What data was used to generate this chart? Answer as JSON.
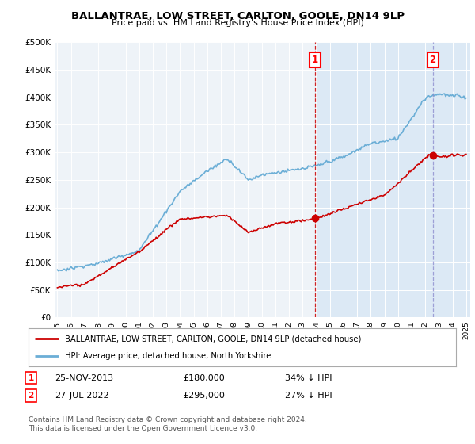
{
  "title": "BALLANTRAE, LOW STREET, CARLTON, GOOLE, DN14 9LP",
  "subtitle": "Price paid vs. HM Land Registry's House Price Index (HPI)",
  "ylim": [
    0,
    500000
  ],
  "yticks": [
    0,
    50000,
    100000,
    150000,
    200000,
    250000,
    300000,
    350000,
    400000,
    450000,
    500000
  ],
  "ytick_labels": [
    "£0",
    "£50K",
    "£100K",
    "£150K",
    "£200K",
    "£250K",
    "£300K",
    "£350K",
    "£400K",
    "£450K",
    "£500K"
  ],
  "hpi_color": "#6baed6",
  "hpi_fill_color": "#d0e4f2",
  "price_color": "#cc0000",
  "dashed_line1_color": "#cc0000",
  "dashed_line2_color": "#8888cc",
  "bg_color": "#ffffff",
  "plot_bg_color": "#eef3f8",
  "shaded_bg_color": "#dce9f5",
  "transaction1": {
    "date": "25-NOV-2013",
    "price": "£180,000",
    "hpi_diff": "34% ↓ HPI",
    "label": "1"
  },
  "transaction2": {
    "date": "27-JUL-2022",
    "price": "£295,000",
    "hpi_diff": "27% ↓ HPI",
    "label": "2"
  },
  "legend_line1": "BALLANTRAE, LOW STREET, CARLTON, GOOLE, DN14 9LP (detached house)",
  "legend_line2": "HPI: Average price, detached house, North Yorkshire",
  "footer": "Contains HM Land Registry data © Crown copyright and database right 2024.\nThis data is licensed under the Open Government Licence v3.0.",
  "x_start_year": 1995,
  "x_end_year": 2025,
  "t1_year": 2013.917,
  "t2_year": 2022.542,
  "t1_price": 180000,
  "t2_price": 295000
}
